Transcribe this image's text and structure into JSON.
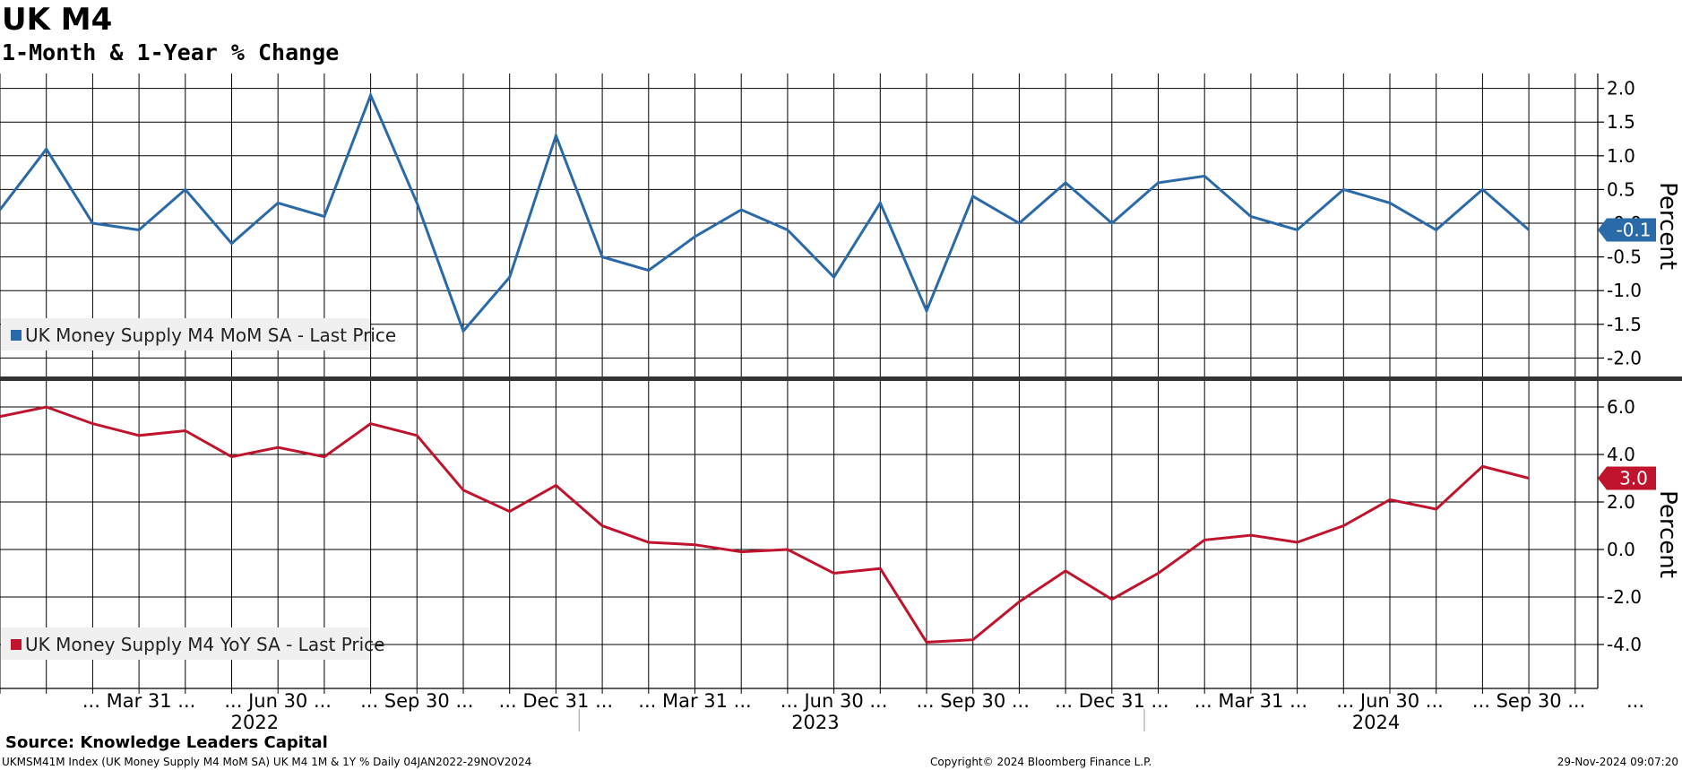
{
  "header": {
    "title": "UK M4",
    "subtitle": "1-Month & 1-Year % Change"
  },
  "footer": {
    "source": "Source: Knowledge Leaders Capital",
    "left": "UKMSM41M Index (UK Money Supply M4 MoM SA) UK M4 1M & 1Y %  Daily 04JAN2022-29NOV2024",
    "center": "Copyright© 2024 Bloomberg Finance L.P.",
    "right": "29-Nov-2024 09:07:20"
  },
  "colors": {
    "mom_series": "#2a6aa8",
    "yoy_series": "#c0142e",
    "grid": "#000000",
    "panel_divider": "#333333"
  },
  "chart_data": {
    "type": "line",
    "x_tick_labels": [
      "... Mar 31 ...",
      "... Jun 30 ...",
      "... Sep 30 ...",
      "... Dec 31 ...",
      "... Mar 31 ...",
      "... Jun 30 ...",
      "... Sep 30 ...",
      "... Dec 31 ...",
      "... Mar 31 ...",
      "... Jun 30 ...",
      "... Sep 30 ...",
      "..."
    ],
    "years": [
      "2022",
      "2023",
      "2024"
    ],
    "panels": [
      {
        "ylabel": "Percent",
        "ylim": [
          -2.3,
          2.3
        ],
        "yticks": [
          2.0,
          1.5,
          1.0,
          0.5,
          0.0,
          -0.5,
          -1.0,
          -1.5,
          -2.0
        ],
        "ytick_labels": [
          "2.0",
          "1.5",
          "1.0",
          "0.5",
          "-0.0",
          "-0.5",
          "-1.0",
          "-1.5",
          "-2.0"
        ],
        "legend": "UK Money Supply M4 MoM SA - Last Price",
        "last_value_label": "-0.1",
        "series": [
          {
            "x": [
              "2021-12",
              "2022-01",
              "2022-02",
              "2022-03",
              "2022-04",
              "2022-05",
              "2022-06",
              "2022-07",
              "2022-08",
              "2022-09",
              "2022-10",
              "2022-11",
              "2022-12",
              "2023-01",
              "2023-02",
              "2023-03",
              "2023-04",
              "2023-05",
              "2023-06",
              "2023-07",
              "2023-08",
              "2023-09",
              "2023-10",
              "2023-11",
              "2023-12",
              "2024-01",
              "2024-02",
              "2024-03",
              "2024-04",
              "2024-05",
              "2024-06",
              "2024-07",
              "2024-08",
              "2024-09",
              "2024-10"
            ],
            "values": [
              0.2,
              1.1,
              0.0,
              -0.1,
              0.5,
              -0.3,
              0.3,
              0.1,
              1.9,
              0.3,
              -1.6,
              -0.8,
              1.3,
              -0.5,
              -0.7,
              -0.2,
              0.2,
              -0.1,
              -0.8,
              0.3,
              -1.3,
              0.4,
              0.0,
              0.6,
              0.0,
              0.6,
              0.7,
              0.1,
              -0.1,
              0.5,
              0.3,
              -0.1,
              0.5,
              -0.1,
              null
            ]
          }
        ]
      },
      {
        "ylabel": "Percent",
        "ylim": [
          -5.2,
          7.0
        ],
        "yticks": [
          6.0,
          4.0,
          2.0,
          0.0,
          -2.0,
          -4.0
        ],
        "ytick_labels": [
          "6.0",
          "4.0",
          "2.0",
          "0.0",
          "-2.0",
          "-4.0"
        ],
        "legend": "UK Money Supply M4 YoY SA - Last Price",
        "last_value_label": "3.0",
        "series": [
          {
            "x": [
              "2021-12",
              "2022-01",
              "2022-02",
              "2022-03",
              "2022-04",
              "2022-05",
              "2022-06",
              "2022-07",
              "2022-08",
              "2022-09",
              "2022-10",
              "2022-11",
              "2022-12",
              "2023-01",
              "2023-02",
              "2023-03",
              "2023-04",
              "2023-05",
              "2023-06",
              "2023-07",
              "2023-08",
              "2023-09",
              "2023-10",
              "2023-11",
              "2023-12",
              "2024-01",
              "2024-02",
              "2024-03",
              "2024-04",
              "2024-05",
              "2024-06",
              "2024-07",
              "2024-08",
              "2024-09",
              "2024-10"
            ],
            "values": [
              5.6,
              6.0,
              5.3,
              4.8,
              5.0,
              3.9,
              4.3,
              3.9,
              5.3,
              4.8,
              2.5,
              1.6,
              2.7,
              1.0,
              0.3,
              0.2,
              -0.1,
              0.0,
              -1.0,
              -0.8,
              -3.9,
              -3.8,
              -2.2,
              -0.9,
              -2.1,
              -1.0,
              0.4,
              0.6,
              0.3,
              1.0,
              2.1,
              1.7,
              3.5,
              3.0,
              null
            ]
          }
        ]
      }
    ]
  }
}
